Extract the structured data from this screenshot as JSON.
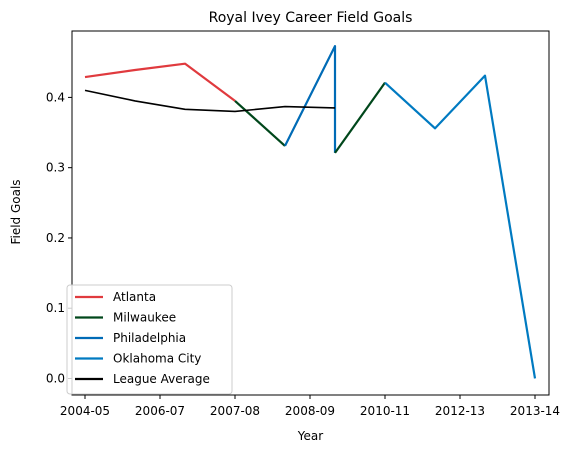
{
  "chart_data": {
    "type": "line",
    "title": "Royal Ivey Career Field Goals",
    "xlabel": "Year",
    "ylabel": "Field Goals",
    "xlim": [
      0,
      9
    ],
    "ylim": [
      -0.0235,
      0.4945
    ],
    "x_tick_labels": [
      "2004-05",
      "2006-07",
      "2007-08",
      "2008-09",
      "2010-11",
      "2012-13",
      "2013-14"
    ],
    "y_ticks": [
      0.0,
      0.1,
      0.2,
      0.3,
      0.4
    ],
    "y_tick_labels": [
      "0.0",
      "0.1",
      "0.2",
      "0.3",
      "0.4"
    ],
    "grid": false,
    "legend_position": "lower-left",
    "series": [
      {
        "name": "Atlanta",
        "color": "#e03a3e",
        "points": [
          [
            0,
            0.429
          ],
          [
            1,
            0.439
          ],
          [
            2,
            0.448
          ],
          [
            3,
            0.395
          ]
        ]
      },
      {
        "name": "Milwaukee",
        "color": "#00471b",
        "points": [
          [
            3,
            0.395
          ],
          [
            4,
            0.331
          ]
        ]
      },
      {
        "name": "Philadelphia",
        "color": "#006bb6",
        "points": [
          [
            4,
            0.331
          ],
          [
            5,
            0.473
          ],
          [
            5,
            0.321
          ]
        ]
      },
      {
        "name": "Milwaukee",
        "color": "#00471b",
        "points": [
          [
            5,
            0.321
          ],
          [
            6,
            0.421
          ]
        ]
      },
      {
        "name": "Oklahoma City",
        "color": "#007ac1",
        "points": [
          [
            6,
            0.421
          ],
          [
            7,
            0.356
          ],
          [
            8,
            0.431
          ],
          [
            9,
            0.0
          ]
        ]
      },
      {
        "name": "League Average",
        "color": "#000000",
        "points": [
          [
            0,
            0.41
          ],
          [
            1,
            0.395
          ],
          [
            2,
            0.383
          ],
          [
            3,
            0.38
          ],
          [
            4,
            0.387
          ],
          [
            5,
            0.385
          ]
        ]
      }
    ],
    "legend": [
      {
        "label": "Atlanta",
        "color": "#e03a3e"
      },
      {
        "label": "Milwaukee",
        "color": "#00471b"
      },
      {
        "label": "Philadelphia",
        "color": "#006bb6"
      },
      {
        "label": "Oklahoma City",
        "color": "#007ac1"
      },
      {
        "label": "League Average",
        "color": "#000000"
      }
    ]
  }
}
